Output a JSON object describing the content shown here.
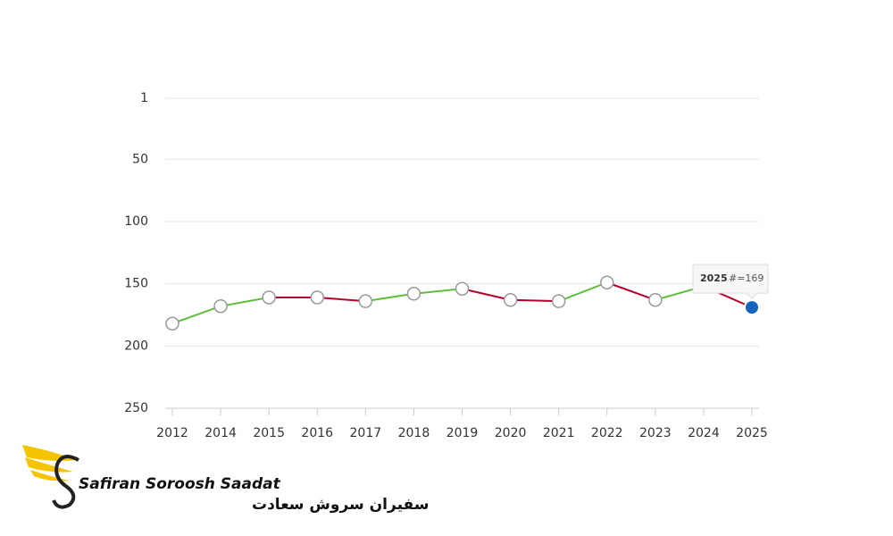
{
  "chart_data": {
    "type": "line",
    "categories": [
      "2012",
      "2014",
      "2015",
      "2016",
      "2017",
      "2018",
      "2019",
      "2020",
      "2021",
      "2022",
      "2023",
      "2024",
      "2025"
    ],
    "values": [
      182,
      168,
      161,
      161,
      164,
      158,
      154,
      163,
      164,
      149,
      163,
      152,
      169
    ],
    "value_labels": [
      null,
      null,
      null,
      null,
      null,
      null,
      null,
      null,
      null,
      null,
      null,
      null,
      "#=169"
    ],
    "ylim": [
      1,
      250
    ],
    "yticks": [
      1,
      50,
      100,
      150,
      200,
      250
    ],
    "y_inverted": true,
    "grid": true,
    "improve_color": "#5cbf3a",
    "decline_color": "#b3002d",
    "marker_color": "#ffffff",
    "highlight_color": "#1565c0",
    "highlight_index": 12
  },
  "logo": {
    "name_en": "Safiran Soroosh Saadat",
    "name_fa": "سفیران سروش سعادت"
  }
}
